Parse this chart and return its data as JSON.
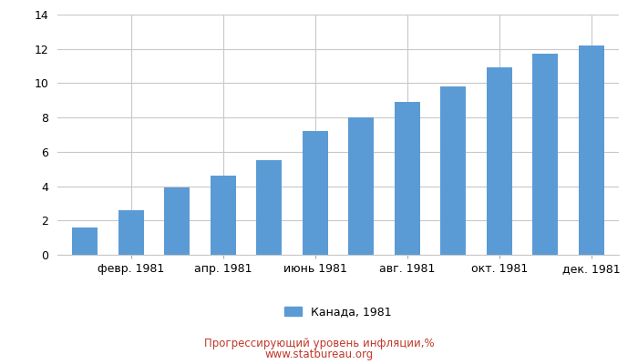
{
  "x_tick_labels": [
    "февр. 1981",
    "апр. 1981",
    "июнь 1981",
    "авг. 1981",
    "окт. 1981",
    "дек. 1981"
  ],
  "x_tick_positions": [
    1,
    3,
    5,
    7,
    9,
    11
  ],
  "values": [
    1.6,
    2.6,
    3.9,
    4.6,
    5.5,
    7.2,
    8.0,
    8.9,
    9.8,
    10.9,
    11.7,
    12.2
  ],
  "bar_color": "#5b9bd5",
  "ylim": [
    0,
    14
  ],
  "yticks": [
    0,
    2,
    4,
    6,
    8,
    10,
    12,
    14
  ],
  "legend_label": "Канада, 1981",
  "footer_line1": "Прогрессирующий уровень инфляции,%",
  "footer_line2": "www.statbureau.org",
  "footer_color": "#c0392b",
  "background_color": "#ffffff",
  "grid_color": "#c8c8c8",
  "bar_width": 0.55,
  "tick_fontsize": 9,
  "legend_fontsize": 9,
  "footer_fontsize": 8.5
}
